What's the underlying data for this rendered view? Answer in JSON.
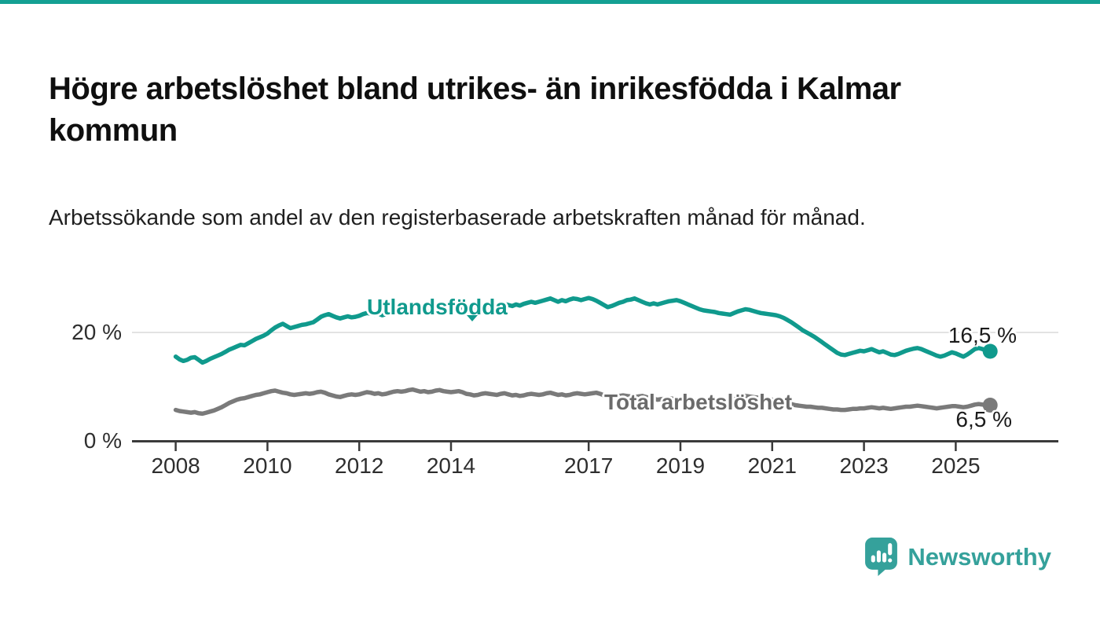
{
  "page": {
    "title": "Högre arbetslöshet bland utrikes- än inrikesfödda i Kalmar kommun",
    "subtitle": "Arbetssökande som andel av den registerbaserade arbetskraften månad för månad.",
    "top_border_color": "#14a093",
    "background_color": "#ffffff"
  },
  "branding": {
    "logo_text": "Newsworthy",
    "logo_color": "#35a19b",
    "logo_icon": "speech-bubble-bar-chart-icon"
  },
  "chart_data": {
    "type": "line",
    "title": "Högre arbetslöshet bland utrikes- än inrikesfödda i Kalmar kommun",
    "subtitle": "Arbetssökande som andel av den registerbaserade arbetskraften månad för månad.",
    "xlabel": "",
    "ylabel": "",
    "unit": "%",
    "frequency": "monthly",
    "x_start": "2008-01",
    "x_end": "2025-10",
    "x_axis_ticks": [
      2008,
      2010,
      2012,
      2014,
      2017,
      2019,
      2021,
      2023,
      2025
    ],
    "y_axis": {
      "ticks": [
        {
          "value": 0,
          "label": "0 %"
        },
        {
          "value": 20,
          "label": "20 %"
        }
      ],
      "range": [
        0,
        28
      ],
      "grid": "horizontal gridline at 20 % only"
    },
    "legend_position": "inline-labels-on-lines",
    "colors": {
      "utlandsfodda": "#109a8d",
      "total": "#7a7a7a",
      "grid": "#dadada",
      "axis": "#3a3a3a",
      "tick_text": "#2e2e2e"
    },
    "series": [
      {
        "name": "Utlandsfödda",
        "color": "#109a8d",
        "end_value": 16.5,
        "end_label": "16,5 %",
        "values": [
          15.5,
          15.0,
          14.7,
          14.9,
          15.3,
          15.4,
          14.9,
          14.4,
          14.7,
          15.1,
          15.4,
          15.7,
          16.0,
          16.4,
          16.8,
          17.1,
          17.4,
          17.7,
          17.6,
          18.0,
          18.4,
          18.8,
          19.1,
          19.4,
          19.8,
          20.4,
          20.9,
          21.3,
          21.6,
          21.2,
          20.8,
          21.0,
          21.2,
          21.4,
          21.5,
          21.7,
          21.9,
          22.4,
          22.9,
          23.2,
          23.4,
          23.1,
          22.8,
          22.6,
          22.8,
          23.0,
          22.8,
          22.9,
          23.1,
          23.4,
          23.6,
          23.5,
          23.3,
          23.5,
          23.2,
          23.4,
          23.7,
          23.9,
          23.8,
          24.0,
          23.9,
          24.1,
          24.4,
          24.2,
          24.0,
          24.3,
          23.9,
          24.1,
          24.4,
          24.6,
          24.3,
          24.2,
          24.1,
          24.3,
          24.6,
          24.4,
          24.2,
          24.5,
          24.1,
          24.4,
          24.7,
          24.9,
          24.7,
          24.8,
          24.9,
          25.1,
          25.3,
          25.1,
          24.9,
          25.2,
          25.0,
          25.3,
          25.5,
          25.7,
          25.5,
          25.7,
          25.9,
          26.1,
          26.3,
          26.0,
          25.7,
          26.0,
          25.8,
          26.1,
          26.3,
          26.2,
          26.0,
          26.2,
          26.4,
          26.2,
          25.9,
          25.5,
          25.1,
          24.7,
          24.9,
          25.2,
          25.5,
          25.7,
          26.0,
          26.1,
          26.3,
          26.0,
          25.7,
          25.4,
          25.2,
          25.4,
          25.2,
          25.4,
          25.6,
          25.8,
          25.9,
          26.0,
          25.8,
          25.5,
          25.2,
          24.9,
          24.6,
          24.3,
          24.1,
          24.0,
          23.9,
          23.8,
          23.6,
          23.5,
          23.4,
          23.3,
          23.6,
          23.9,
          24.1,
          24.3,
          24.2,
          24.0,
          23.8,
          23.6,
          23.5,
          23.4,
          23.3,
          23.2,
          23.0,
          22.7,
          22.3,
          21.9,
          21.4,
          20.9,
          20.4,
          20.0,
          19.6,
          19.2,
          18.7,
          18.2,
          17.7,
          17.2,
          16.7,
          16.2,
          15.9,
          15.8,
          16.0,
          16.2,
          16.4,
          16.6,
          16.5,
          16.7,
          16.9,
          16.6,
          16.3,
          16.5,
          16.2,
          15.9,
          15.8,
          16.0,
          16.3,
          16.6,
          16.8,
          17.0,
          17.1,
          16.9,
          16.6,
          16.3,
          16.0,
          15.7,
          15.5,
          15.7,
          16.0,
          16.3,
          16.1,
          15.8,
          15.5,
          15.9,
          16.4,
          16.9,
          17.1,
          16.9,
          16.6,
          16.5
        ]
      },
      {
        "name": "Total arbetslöshet",
        "color": "#7a7a7a",
        "end_value": 6.5,
        "end_label": "6,5 %",
        "values": [
          5.6,
          5.4,
          5.3,
          5.2,
          5.1,
          5.2,
          5.0,
          4.9,
          5.1,
          5.3,
          5.5,
          5.8,
          6.1,
          6.5,
          6.9,
          7.2,
          7.5,
          7.7,
          7.8,
          8.0,
          8.2,
          8.4,
          8.5,
          8.7,
          8.9,
          9.1,
          9.2,
          9.0,
          8.8,
          8.7,
          8.5,
          8.4,
          8.5,
          8.6,
          8.7,
          8.6,
          8.7,
          8.9,
          9.0,
          8.8,
          8.5,
          8.3,
          8.1,
          8.0,
          8.2,
          8.4,
          8.5,
          8.4,
          8.5,
          8.7,
          8.9,
          8.8,
          8.6,
          8.7,
          8.5,
          8.6,
          8.8,
          9.0,
          9.1,
          9.0,
          9.1,
          9.3,
          9.4,
          9.2,
          9.0,
          9.1,
          8.9,
          9.0,
          9.2,
          9.3,
          9.1,
          9.0,
          8.9,
          9.0,
          9.1,
          8.9,
          8.6,
          8.5,
          8.3,
          8.4,
          8.6,
          8.7,
          8.6,
          8.5,
          8.4,
          8.6,
          8.7,
          8.5,
          8.3,
          8.4,
          8.2,
          8.3,
          8.5,
          8.6,
          8.5,
          8.4,
          8.5,
          8.7,
          8.8,
          8.6,
          8.4,
          8.5,
          8.3,
          8.4,
          8.6,
          8.7,
          8.6,
          8.5,
          8.6,
          8.7,
          8.8,
          8.6,
          8.3,
          8.1,
          8.0,
          8.1,
          8.2,
          8.3,
          8.2,
          8.1,
          8.0,
          8.1,
          8.2,
          8.0,
          7.8,
          7.7,
          7.5,
          7.6,
          7.7,
          7.8,
          7.7,
          7.6,
          7.5,
          7.6,
          7.7,
          7.5,
          7.3,
          7.2,
          7.1,
          7.2,
          7.3,
          7.4,
          7.3,
          7.2,
          7.3,
          7.4,
          7.6,
          7.9,
          8.1,
          8.2,
          8.1,
          8.0,
          7.9,
          7.8,
          7.7,
          7.6,
          7.5,
          7.4,
          7.3,
          7.1,
          6.9,
          6.7,
          6.5,
          6.4,
          6.3,
          6.2,
          6.2,
          6.1,
          6.0,
          6.0,
          5.9,
          5.8,
          5.7,
          5.7,
          5.6,
          5.6,
          5.7,
          5.8,
          5.8,
          5.9,
          5.9,
          6.0,
          6.1,
          6.0,
          5.9,
          6.0,
          5.9,
          5.8,
          5.9,
          6.0,
          6.1,
          6.2,
          6.2,
          6.3,
          6.4,
          6.3,
          6.2,
          6.1,
          6.0,
          5.9,
          6.0,
          6.1,
          6.2,
          6.3,
          6.3,
          6.2,
          6.1,
          6.2,
          6.4,
          6.6,
          6.7,
          6.6,
          6.5,
          6.5
        ]
      }
    ]
  }
}
